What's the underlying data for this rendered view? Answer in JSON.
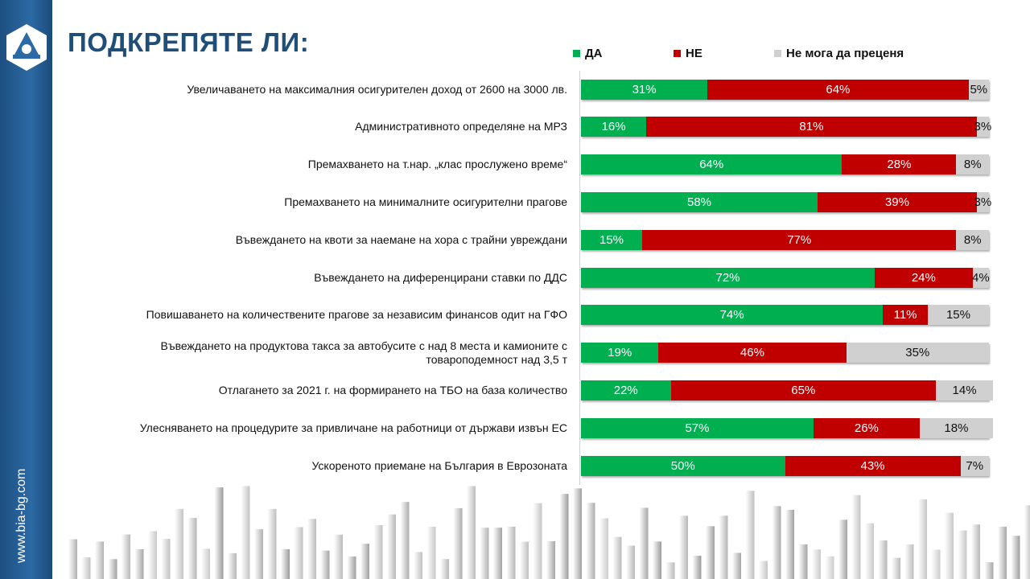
{
  "sidebar": {
    "url": "www.bia-bg.com"
  },
  "colors": {
    "yes": "#00b050",
    "no": "#c00000",
    "unsure": "#d0d0d0",
    "title": "#1f4e79"
  },
  "chart_data": {
    "type": "bar",
    "orientation": "horizontal-stacked-100",
    "title": "ПОДКРЕПЯТЕ ЛИ:",
    "legend_position": "top",
    "categories": [
      "Увеличаването на максималния осигурителен доход от 2600 на 3000 лв.",
      "Административното определяне на МРЗ",
      "Премахването на т.нар. „клас прослужено време“",
      "Премахването на минималните осигурителни прагове",
      "Въвеждането на квоти за наемане на хора с трайни увреждани",
      "Въвеждането на диференцирани ставки по ДДС",
      "Повишаването на количествените прагове за независим финансов одит на ГФО",
      "Въвеждането на продуктова такса за автобусите с над 8 места и камионите с товароподемност над 3,5 т",
      "Отлагането за 2021 г. на формирането на ТБО на база количество",
      "Улесняването на процедурите за привличане на работници от държави извън ЕС",
      "Ускореното приемане на България в Еврозоната"
    ],
    "series": [
      {
        "name": "ДА",
        "values": [
          31,
          16,
          64,
          58,
          15,
          72,
          74,
          19,
          22,
          57,
          50
        ]
      },
      {
        "name": "НЕ",
        "values": [
          64,
          81,
          28,
          39,
          77,
          24,
          11,
          46,
          65,
          26,
          43
        ]
      },
      {
        "name": "Не мога да преценя",
        "values": [
          5,
          3,
          8,
          3,
          8,
          4,
          15,
          35,
          14,
          18,
          7
        ]
      }
    ],
    "value_suffix": "%"
  }
}
